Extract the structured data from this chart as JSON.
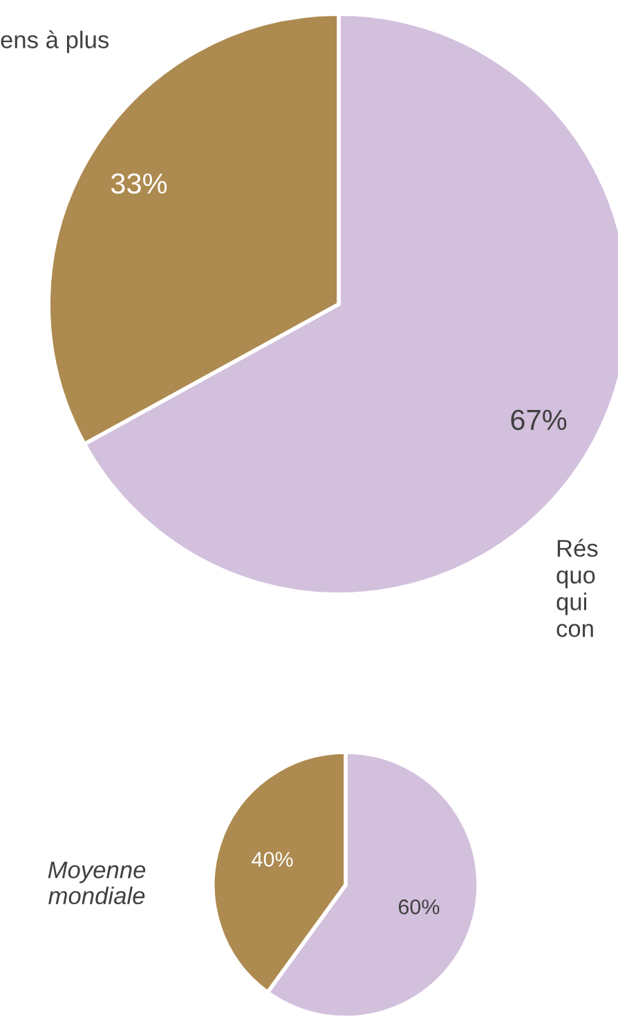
{
  "chart_data": [
    {
      "type": "pie",
      "categories": [
        null,
        null
      ],
      "values": [
        67,
        33
      ],
      "value_labels": [
        "67%",
        "33%"
      ],
      "colors": [
        "#d3c0dd",
        "#ad8a50"
      ],
      "annotations": [
        "ens à plus",
        "Rés\nquo\nqui\ncon"
      ]
    },
    {
      "type": "pie",
      "title": "Moyenne\nmondiale",
      "categories": [
        null,
        null
      ],
      "values": [
        60,
        40
      ],
      "value_labels": [
        "60%",
        "40%"
      ],
      "colors": [
        "#d3c0dd",
        "#ad8a50"
      ]
    }
  ]
}
